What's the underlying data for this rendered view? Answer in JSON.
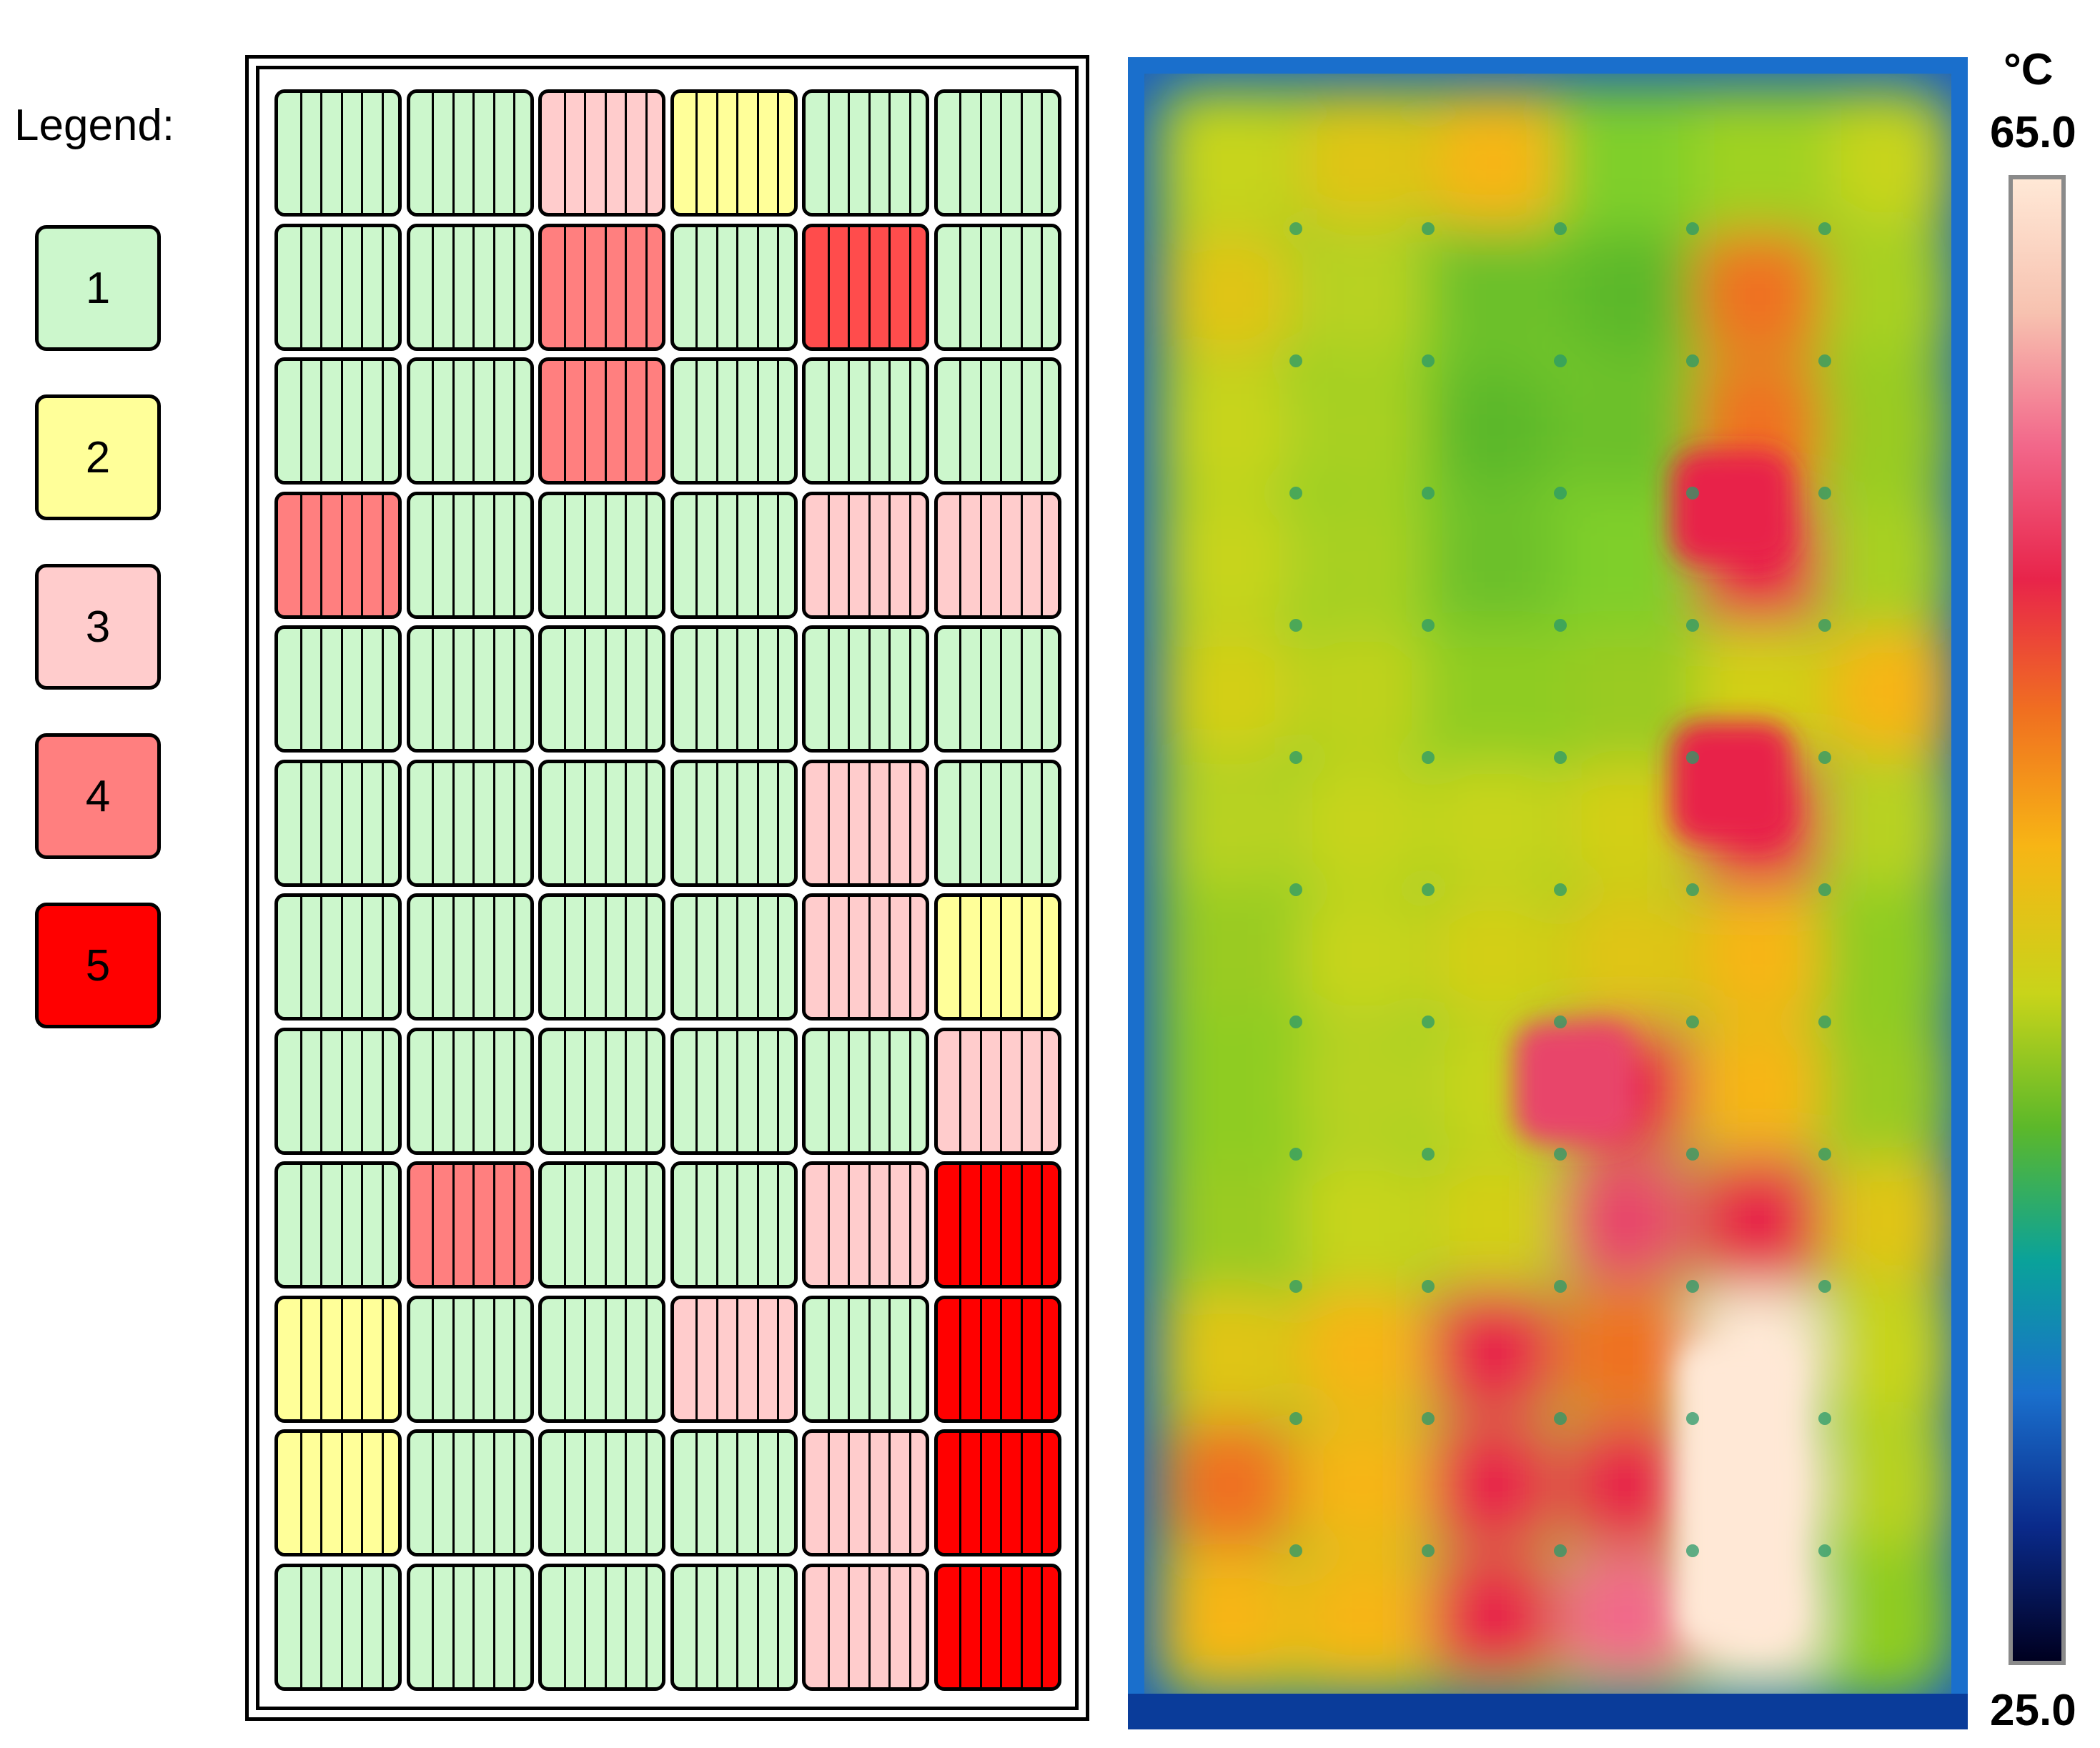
{
  "legend": {
    "title": "Legend:",
    "items": [
      {
        "label": "1",
        "color": "#ccf7cc"
      },
      {
        "label": "2",
        "color": "#ffff99"
      },
      {
        "label": "3",
        "color": "#ffcccc"
      },
      {
        "label": "4",
        "color": "#ff7f7f"
      },
      {
        "label": "5",
        "color": "#ff0000"
      }
    ]
  },
  "panel": {
    "grid": [
      [
        1,
        1,
        3,
        2,
        1,
        1
      ],
      [
        1,
        1,
        4,
        1,
        4,
        1
      ],
      [
        1,
        1,
        4,
        1,
        1,
        1
      ],
      [
        4,
        1,
        1,
        1,
        3,
        3
      ],
      [
        1,
        1,
        1,
        1,
        1,
        1
      ],
      [
        1,
        1,
        1,
        1,
        3,
        1
      ],
      [
        1,
        1,
        1,
        1,
        3,
        2
      ],
      [
        1,
        1,
        1,
        1,
        1,
        3
      ],
      [
        1,
        4,
        1,
        1,
        3,
        5
      ],
      [
        2,
        1,
        1,
        3,
        1,
        5
      ],
      [
        2,
        1,
        1,
        1,
        3,
        5
      ],
      [
        1,
        1,
        1,
        1,
        3,
        5
      ]
    ],
    "level_colors": {
      "1": "#ccf7cc",
      "2": "#ffff99",
      "3": "#ffcccc",
      "4": "#ff7f7f",
      "5": "#ff0000"
    },
    "cell_4_alt_color": "#ff4c4c"
  },
  "thermal": {
    "unit": "°C",
    "max": "65.0",
    "min": "25.0",
    "colormap": [
      "#ffe8d6",
      "#f7c2b0",
      "#f2678a",
      "#e8244a",
      "#f07020",
      "#f7b515",
      "#c8d41a",
      "#5cb82a",
      "#0aa29a",
      "#1a6fcc",
      "#0a2a8a",
      "#000020"
    ],
    "background_color": "#7fcf2a"
  }
}
